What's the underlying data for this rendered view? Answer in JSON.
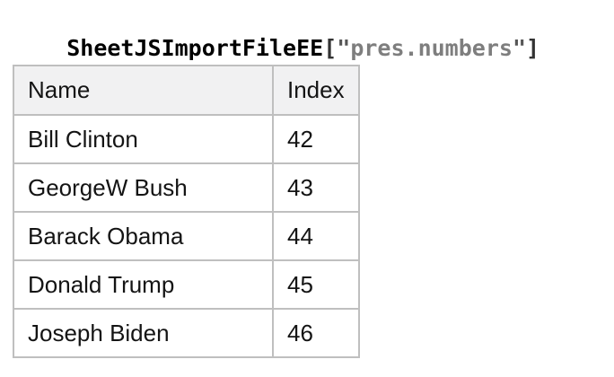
{
  "title": {
    "variable": "SheetJSImportFileEE",
    "open_bracket": "[",
    "open_quote": "\"",
    "sheet_name": "pres.numbers",
    "close_quote": "\"",
    "close_bracket": "]"
  },
  "table": {
    "columns": {
      "name": "Name",
      "index": "Index"
    },
    "rows": [
      {
        "name": "Bill Clinton",
        "index": "42"
      },
      {
        "name": "GeorgeW Bush",
        "index": "43"
      },
      {
        "name": "Barack Obama",
        "index": "44"
      },
      {
        "name": "Donald Trump",
        "index": "45"
      },
      {
        "name": "Joseph Biden",
        "index": "46"
      }
    ]
  },
  "chart_data": {
    "type": "table",
    "title": "SheetJSImportFileEE[\"pres.numbers\"]",
    "columns": [
      "Name",
      "Index"
    ],
    "rows": [
      [
        "Bill Clinton",
        42
      ],
      [
        "GeorgeW Bush",
        43
      ],
      [
        "Barack Obama",
        44
      ],
      [
        "Donald Trump",
        45
      ],
      [
        "Joseph Biden",
        46
      ]
    ]
  },
  "colors": {
    "header_background": "#f1f1f2",
    "table_border": "#bfbfbf",
    "body_text": "#141414",
    "title_variable": "#000000",
    "title_bracket": "#333333",
    "title_quote": "#565656",
    "title_string": "#7e7e7e"
  }
}
